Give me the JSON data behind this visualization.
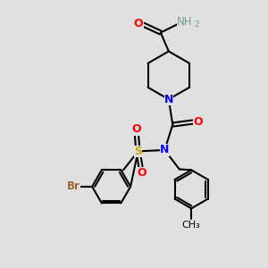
{
  "background_color": "#e0e0e0",
  "figure_size": [
    3.0,
    3.0
  ],
  "dpi": 100,
  "colors": {
    "C": "#000000",
    "N": "#0000ff",
    "O": "#ff0000",
    "S": "#ccaa00",
    "Br": "#996633",
    "H": "#7a9a9a",
    "bond": "#000000"
  },
  "bond_lw": 1.5,
  "font_size": 8.5
}
